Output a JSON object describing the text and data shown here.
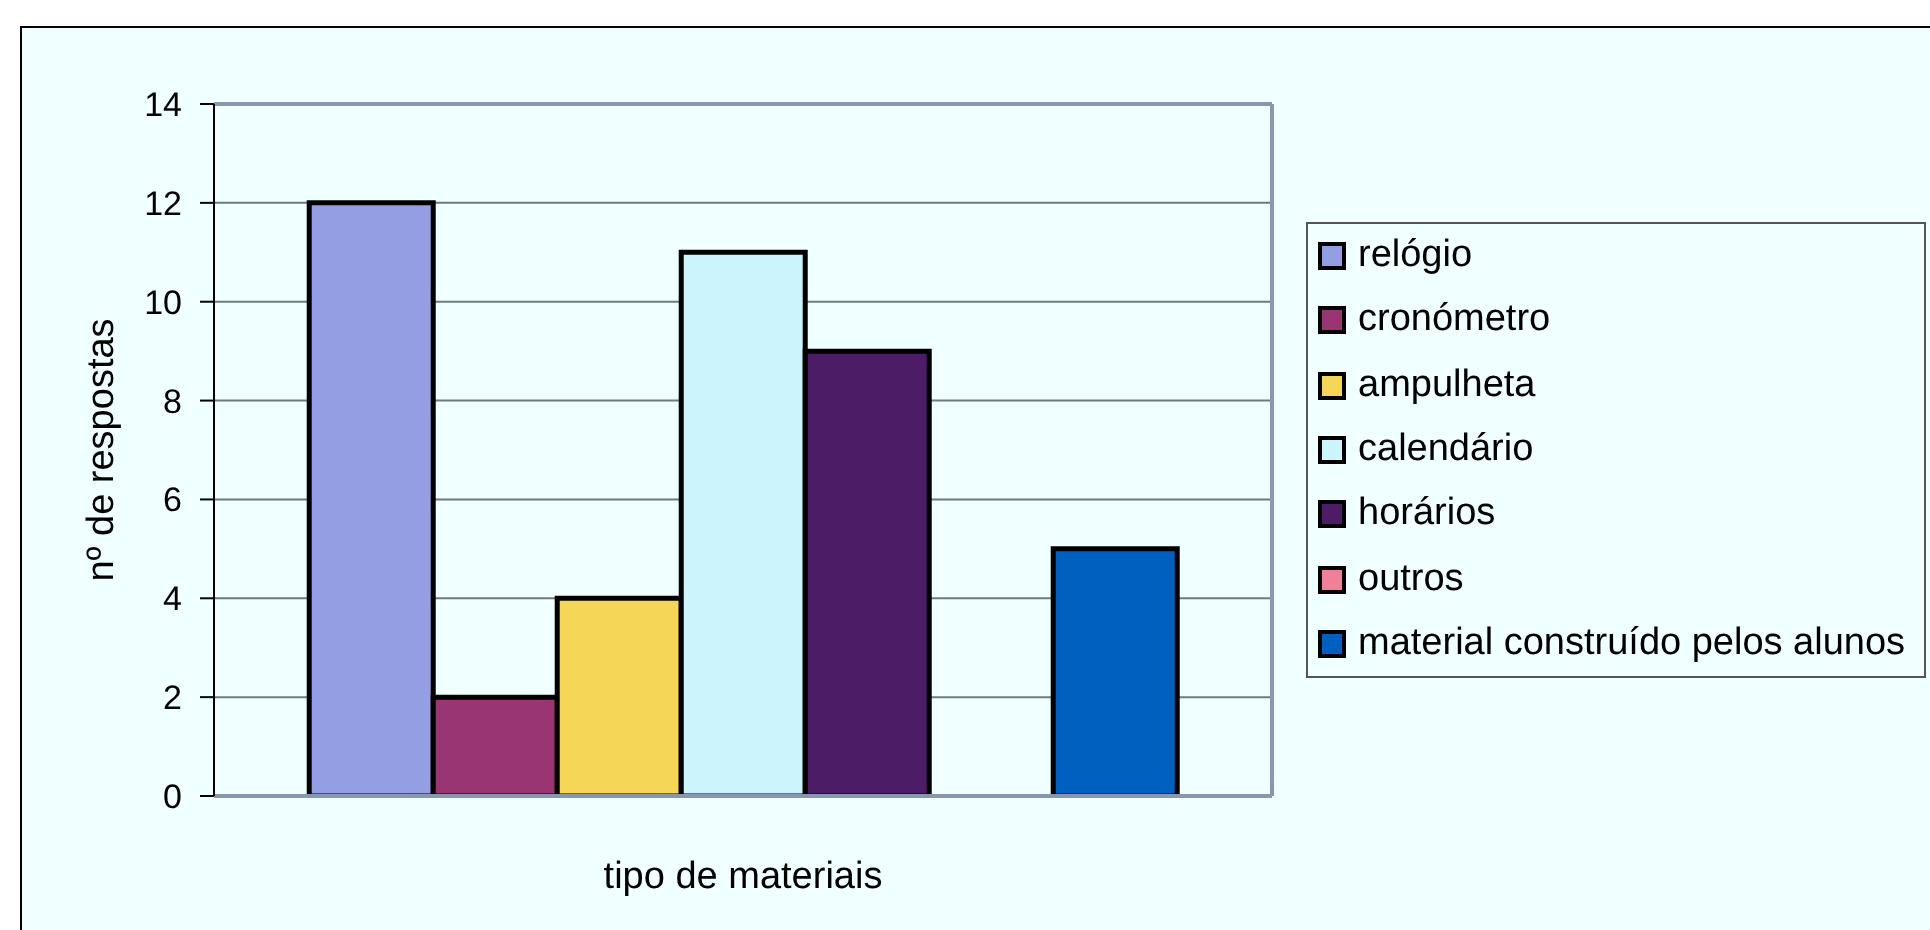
{
  "chart_data": {
    "type": "bar",
    "xlabel": "tipo de materiais",
    "ylabel": "nº de respostas",
    "categories": [
      null
    ],
    "series": [
      {
        "name": "relógio",
        "color": "#949ee3",
        "values": [
          12
        ]
      },
      {
        "name": "cronómetro",
        "color": "#993570",
        "values": [
          2
        ]
      },
      {
        "name": "ampulheta",
        "color": "#f5d657",
        "values": [
          4
        ]
      },
      {
        "name": "calendário",
        "color": "#ccf4fc",
        "values": [
          11
        ]
      },
      {
        "name": "horários",
        "color": "#4c1c66",
        "values": [
          9
        ]
      },
      {
        "name": "outros",
        "color": "#f27f9a",
        "values": [
          0
        ]
      },
      {
        "name": "material construído pelos alunos",
        "color": "#0060c0",
        "values": [
          5
        ]
      }
    ],
    "ylim": [
      0,
      14
    ],
    "yticks": [
      0,
      2,
      4,
      6,
      8,
      10,
      12,
      14
    ],
    "grid": "y",
    "legend": "right"
  }
}
